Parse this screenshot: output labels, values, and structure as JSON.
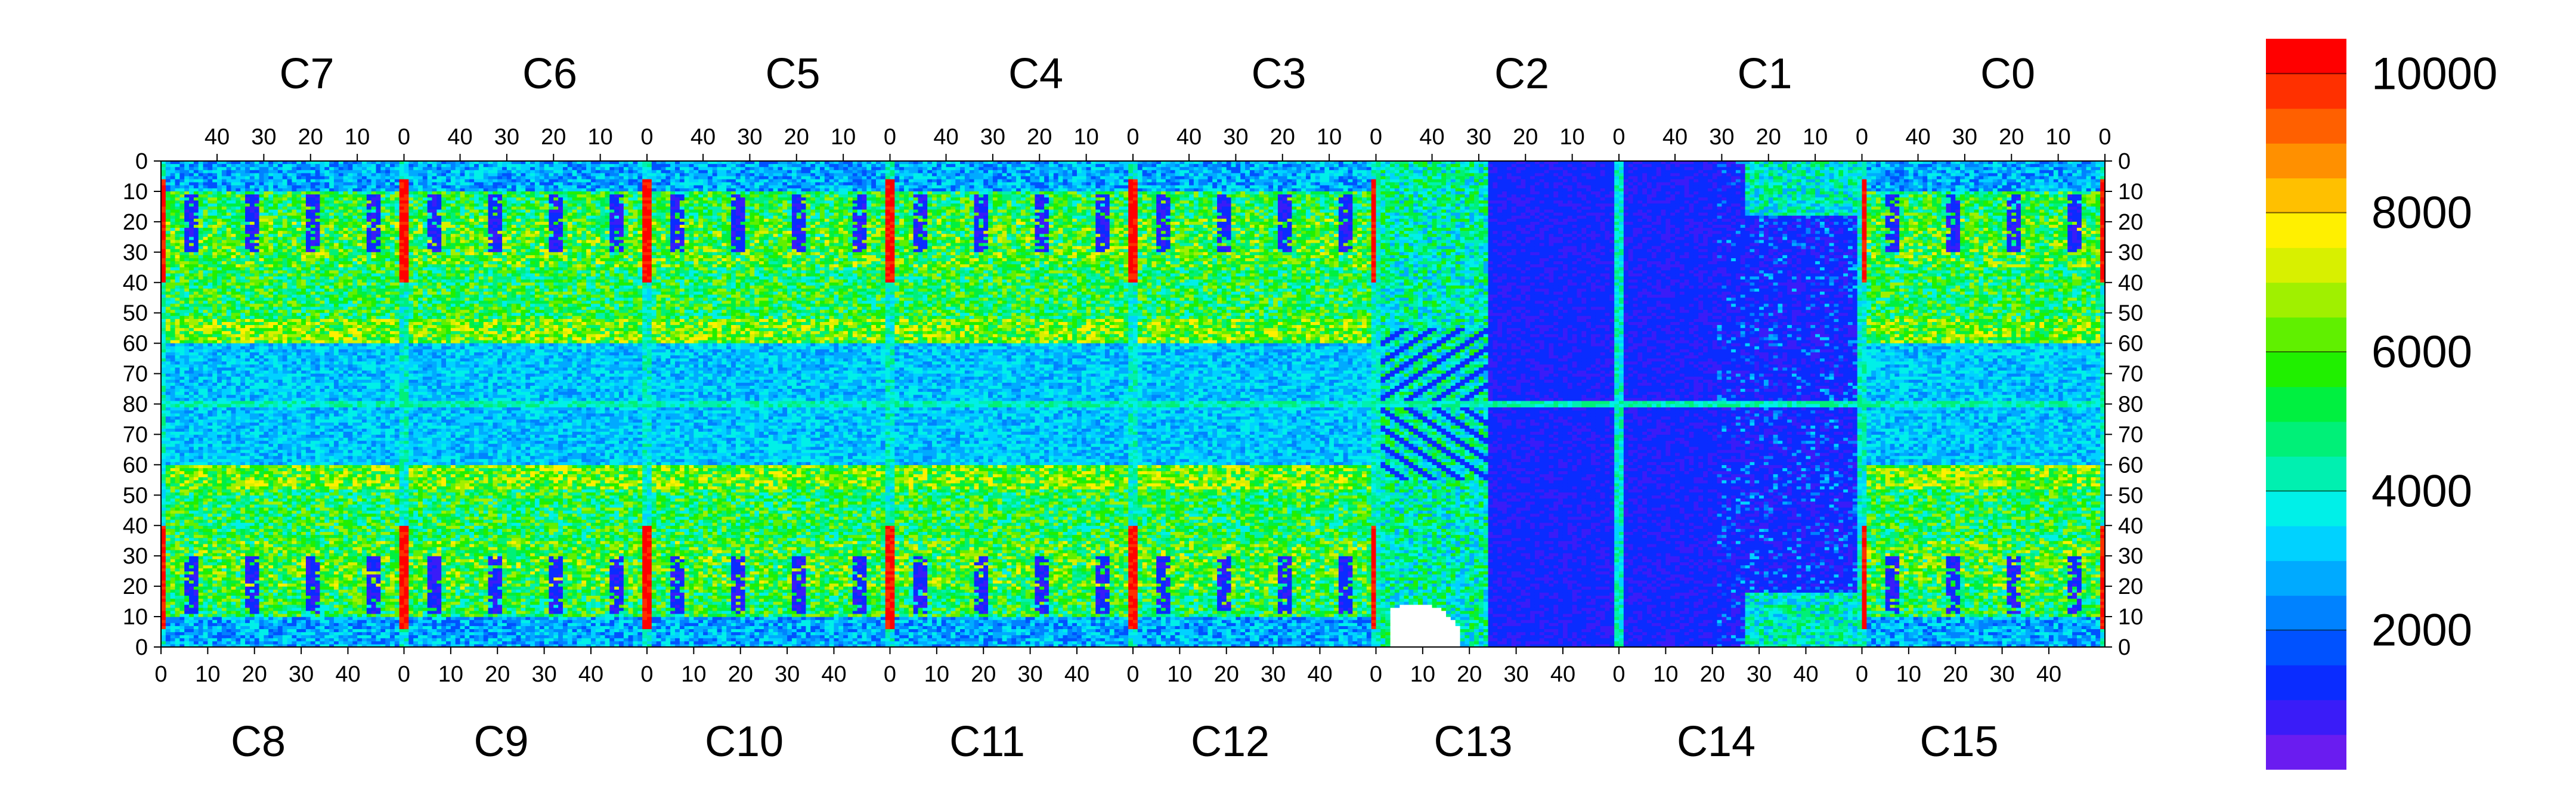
{
  "chart_data": {
    "type": "heatmap",
    "title": "",
    "top_chips": [
      "C7",
      "C6",
      "C5",
      "C4",
      "C3",
      "C2",
      "C1",
      "C0"
    ],
    "bottom_chips": [
      "C8",
      "C9",
      "C10",
      "C11",
      "C12",
      "C13",
      "C14",
      "C15"
    ],
    "top_x_ticks": [
      "40",
      "30",
      "20",
      "10",
      "0"
    ],
    "bottom_x_ticks": [
      "0",
      "10",
      "20",
      "30",
      "40"
    ],
    "y_ticks": [
      "0",
      "10",
      "20",
      "30",
      "40",
      "50",
      "60",
      "70",
      "80",
      "70",
      "60",
      "50",
      "40",
      "30",
      "20",
      "10",
      "0"
    ],
    "columns_per_chip": 52,
    "rows_per_half": 80,
    "color_scale": {
      "min": 0,
      "max": 10500,
      "ticks": [
        "2000",
        "4000",
        "6000",
        "8000",
        "10000"
      ],
      "tick_values": [
        2000,
        4000,
        6000,
        8000,
        10000
      ],
      "colors": [
        "#6a1cf0",
        "#3a1cf8",
        "#0a2cff",
        "#0052ff",
        "#0082ff",
        "#00aaff",
        "#00d2ff",
        "#00f0e8",
        "#00f0b0",
        "#00f078",
        "#00f040",
        "#20f000",
        "#60f000",
        "#a0f000",
        "#d8f000",
        "#fff000",
        "#ffc000",
        "#ff9000",
        "#ff6000",
        "#ff3000",
        "#ff0000"
      ]
    },
    "regions": {
      "low_occupancy_chips": [
        "C2",
        "C1",
        "C13",
        "C14"
      ],
      "hot_columns": "chip edge columns (col 0/51)",
      "empty_region": "C13 bottom-left (zero counts)"
    }
  }
}
